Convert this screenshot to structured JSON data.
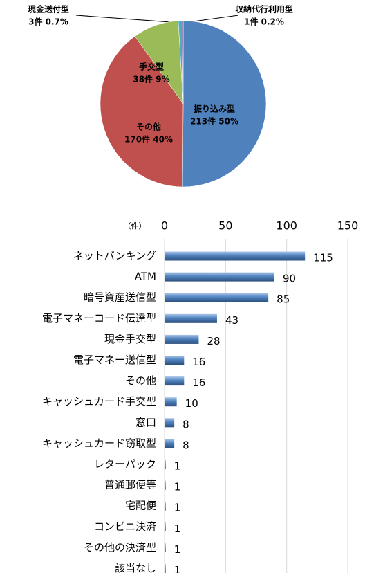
{
  "chart_data": [
    {
      "type": "pie",
      "categories": [
        "振り込み型",
        "その他",
        "手交型",
        "現金送付型",
        "収納代行利用型"
      ],
      "values": [
        213,
        170,
        38,
        3,
        1
      ],
      "value_labels": [
        "213件 50%",
        "170件 40%",
        "38件 9%",
        "3件 0.7%",
        "1件 0.2%"
      ],
      "colors": [
        "#4f81bd",
        "#c0504d",
        "#9bbb59",
        "#4bacc6",
        "#8064a2"
      ]
    },
    {
      "type": "barh",
      "xlabel": "（件）",
      "categories": [
        "ネットバンキング",
        "ATM",
        "暗号資産送信型",
        "電子マネーコード伝達型",
        "現金手交型",
        "電子マネー送信型",
        "その他",
        "キャッシュカード手交型",
        "窓口",
        "キャッシュカード窃取型",
        "レターパック",
        "普通郵便等",
        "宅配便",
        "コンビニ決済",
        "その他の決済型",
        "該当なし"
      ],
      "values": [
        115,
        90,
        85,
        43,
        28,
        16,
        16,
        10,
        8,
        8,
        1,
        1,
        1,
        1,
        1,
        1
      ],
      "color": "#4f81bd",
      "xlim": [
        0,
        150
      ],
      "xticks": [
        0,
        50,
        100,
        150
      ],
      "grid": true
    }
  ]
}
